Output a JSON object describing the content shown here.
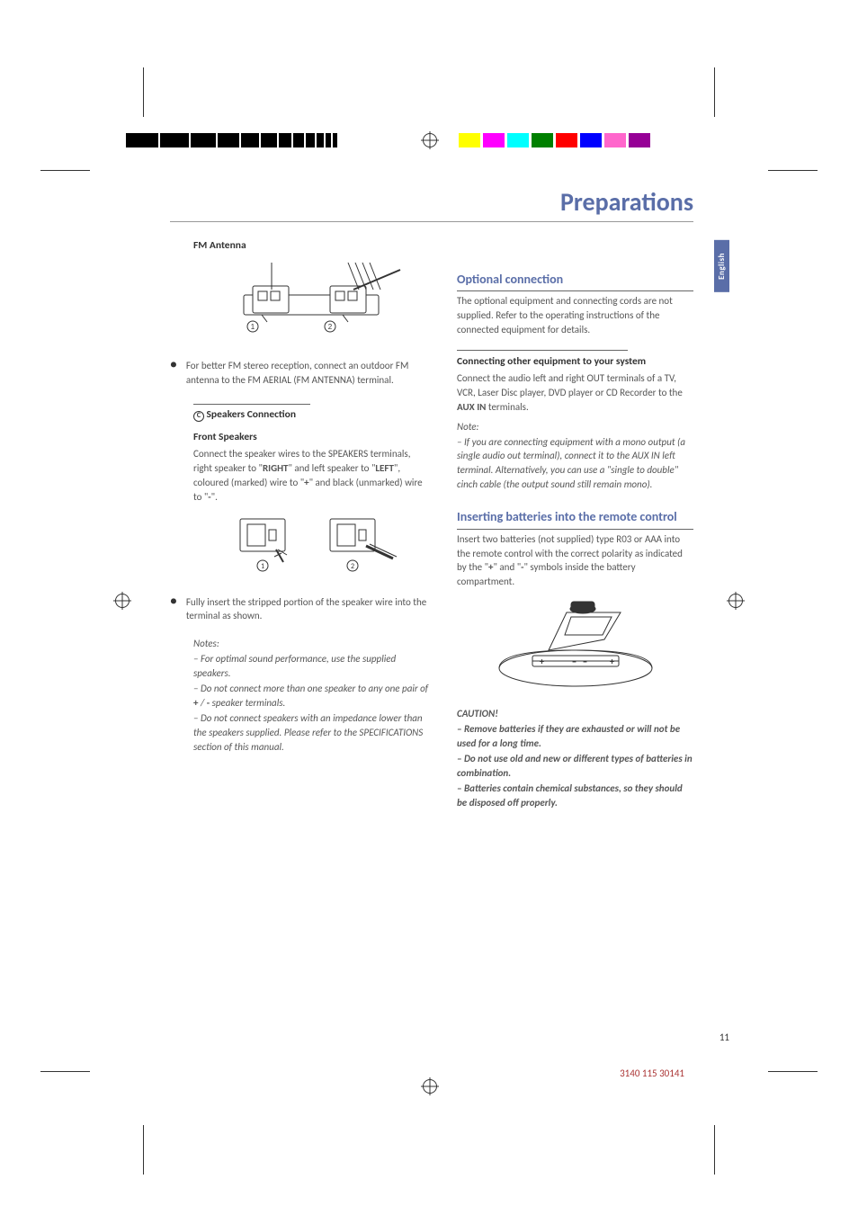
{
  "meta": {
    "page_title": "Preparations",
    "language_tab": "English",
    "page_number": "11",
    "doc_code": "3140 115 30141"
  },
  "left": {
    "fm_heading": "FM Antenna",
    "fm_bullet": "For better FM stereo reception, connect an outdoor FM antenna to the FM AERIAL (FM ANTENNA) terminal.",
    "speakers_section_label": "C",
    "speakers_heading": "Speakers Connection",
    "front_speakers_heading": "Front Speakers",
    "front_speakers_p1a": "Connect the speaker wires to the SPEAKERS terminals, right speaker to \"",
    "front_speakers_right": "RIGHT",
    "front_speakers_p1b": "\" and left speaker to \"",
    "front_speakers_left": "LEFT",
    "front_speakers_p1c": "\", coloured (marked) wire to \"",
    "front_speakers_plus": "+",
    "front_speakers_p1d": "\" and black (unmarked) wire to \"",
    "front_speakers_minus": "-",
    "front_speakers_p1e": "\".",
    "insert_bullet": "Fully insert the stripped portion of the speaker wire into the terminal as shown.",
    "notes_label": "Notes:",
    "note1_a": "–  For optimal sound performance, use the supplied speakers.",
    "note2_a": "–  Do not connect more than one speaker to any one pair of ",
    "note2_plus": "+",
    "note2_slash": " / ",
    "note2_minus": "-",
    "note2_b": " speaker terminals.",
    "note3_a": "–  Do not connect speakers with an impedance lower than the speakers supplied.  Please refer to the SPECIFICATIONS section of this manual."
  },
  "right": {
    "optional_heading": "Optional connection",
    "optional_p": "The optional equipment and connecting cords are not supplied.  Refer to the operating instructions of the connected equipment for details.",
    "other_equip_heading": "Connecting other equipment to your system",
    "other_equip_p_a": "Connect the audio left and right OUT terminals of a TV, VCR, Laser Disc player, DVD player or CD Recorder to the ",
    "other_equip_aux": "AUX IN",
    "other_equip_p_b": " terminals.",
    "note_label": "Note:",
    "note_p": "–  If you are connecting equipment with a mono output (a single audio out terminal), connect it to the AUX IN left terminal.  Alternatively, you can use a \"single to double\" cinch cable (the output sound still remain mono).",
    "batteries_heading": "Inserting batteries into the remote control",
    "batteries_p_a": "Insert two batteries (not supplied) type R03 or AAA into the remote control with the correct polarity as indicated by the \"",
    "batteries_plus": "+",
    "batteries_p_b": "\" and \"",
    "batteries_minus": "-",
    "batteries_p_c": "\" symbols inside the battery compartment.",
    "caution_label": "CAUTION!",
    "caution1": "–  Remove batteries if they are exhausted or will not be used for a long time.",
    "caution2": "–  Do not use old and new or different types of batteries in combination.",
    "caution3": "–  Batteries contain chemical substances, so they should be disposed off properly."
  },
  "reg_marks": {
    "bw_widths": [
      36,
      32,
      28,
      24,
      20,
      18,
      14,
      12,
      10,
      8,
      6,
      5
    ],
    "bw_gap": 0,
    "color_swatches": [
      "#ffff00",
      "#ff00ff",
      "#00ffff",
      "#008000",
      "#ff0000",
      "#0000ff",
      "#ff66cc",
      "#960096"
    ],
    "color_width": 24
  }
}
